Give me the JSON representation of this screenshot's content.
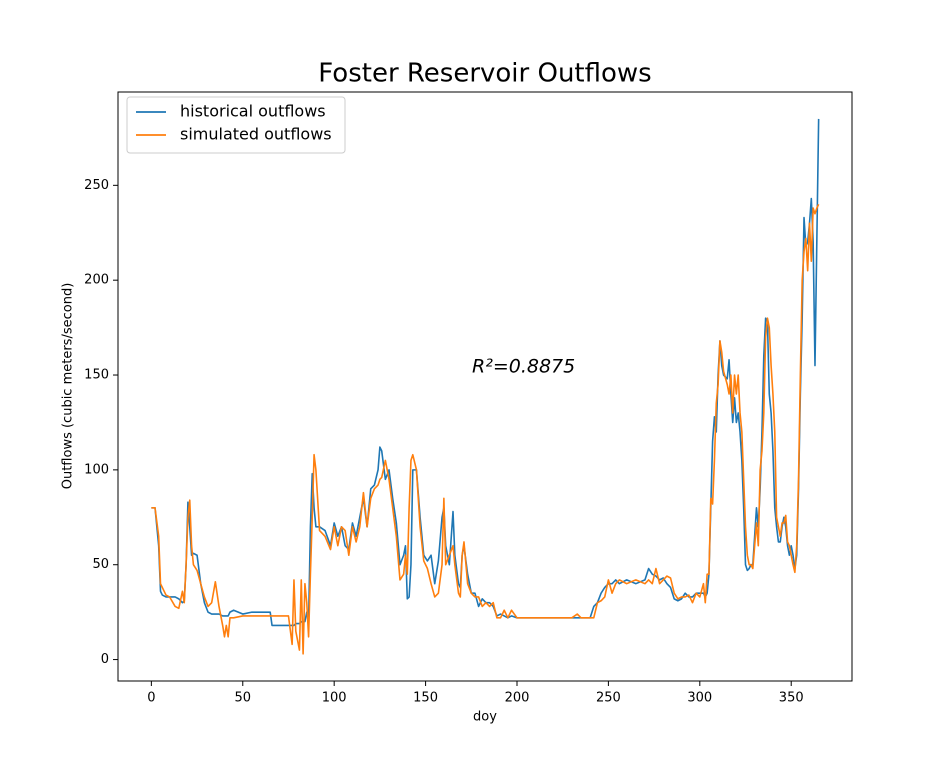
{
  "chart_data": {
    "type": "line",
    "title": "Foster Reservoir Outflows",
    "x_label": "doy",
    "y_label": "Outflows (cubic meters/second)",
    "annotation": "R²=0.8875",
    "legend": "upper left",
    "grid": false,
    "xlim": [
      -18.25,
      383.25
    ],
    "ylim": [
      -11.3,
      299.2
    ],
    "xticks": [
      0,
      50,
      100,
      150,
      200,
      250,
      300,
      350
    ],
    "yticks": [
      0,
      50,
      100,
      150,
      200,
      250
    ],
    "x": [
      0,
      2,
      4,
      5,
      6,
      8,
      10,
      13,
      15,
      17,
      18,
      19,
      20,
      21,
      22,
      23,
      25,
      27,
      29,
      31,
      33,
      35,
      37,
      39,
      40,
      41,
      42,
      43,
      45,
      50,
      55,
      60,
      65,
      66,
      75,
      77,
      78,
      79,
      81,
      82,
      83,
      84,
      85,
      86,
      87,
      88,
      89,
      90,
      92,
      95,
      98,
      100,
      102,
      104,
      106,
      108,
      110,
      112,
      114,
      116,
      118,
      120,
      122,
      124,
      125,
      126,
      128,
      130,
      132,
      134,
      136,
      138,
      139,
      140,
      141,
      142,
      143,
      145,
      147,
      149,
      151,
      153,
      155,
      157,
      159,
      160,
      161,
      163,
      165,
      166,
      168,
      169,
      170,
      171,
      173,
      175,
      177,
      179,
      181,
      183,
      185,
      187,
      189,
      191,
      193,
      195,
      197,
      200,
      210,
      220,
      230,
      233,
      235,
      240,
      242,
      244,
      246,
      248,
      250,
      252,
      254,
      256,
      260,
      265,
      270,
      272,
      274,
      276,
      278,
      280,
      282,
      284,
      286,
      288,
      290,
      292,
      294,
      296,
      298,
      300,
      302,
      303,
      304,
      305,
      306,
      307,
      308,
      309,
      310,
      311,
      312,
      313,
      315,
      316,
      317,
      318,
      319,
      320,
      321,
      322,
      323,
      324,
      325,
      326,
      327,
      328,
      329,
      330,
      331,
      332,
      333,
      334,
      335,
      336,
      337,
      338,
      339,
      340,
      341,
      342,
      343,
      344,
      345,
      346,
      347,
      348,
      349,
      350,
      351,
      352,
      353,
      354,
      355,
      356,
      357,
      358,
      359,
      360,
      361,
      362,
      363,
      364,
      365
    ],
    "series": [
      {
        "name": "historical outflows",
        "color": "#1f77b4",
        "values": [
          80,
          80,
          60,
          36,
          34,
          33,
          33,
          33,
          32,
          30,
          31,
          50,
          83,
          70,
          55,
          56,
          55,
          40,
          30,
          25,
          24,
          24,
          24,
          23,
          23,
          23,
          23,
          25,
          26,
          24,
          25,
          25,
          25,
          18,
          18,
          18,
          18,
          19,
          19,
          20,
          20,
          20,
          25,
          20,
          70,
          98,
          80,
          70,
          70,
          68,
          60,
          72,
          65,
          70,
          60,
          58,
          72,
          65,
          75,
          85,
          70,
          90,
          92,
          100,
          112,
          110,
          95,
          100,
          85,
          72,
          50,
          55,
          60,
          32,
          33,
          50,
          100,
          100,
          75,
          55,
          52,
          55,
          40,
          52,
          75,
          80,
          60,
          50,
          78,
          55,
          40,
          38,
          55,
          60,
          45,
          35,
          35,
          28,
          32,
          30,
          30,
          28,
          23,
          24,
          23,
          22,
          23,
          22,
          22,
          22,
          22,
          22,
          22,
          22,
          28,
          30,
          35,
          38,
          40,
          40,
          42,
          40,
          42,
          40,
          42,
          48,
          45,
          44,
          42,
          43,
          40,
          38,
          32,
          31,
          32,
          35,
          33,
          33,
          35,
          35,
          35,
          33,
          35,
          45,
          80,
          115,
          128,
          120,
          150,
          168,
          155,
          150,
          148,
          158,
          140,
          125,
          138,
          125,
          130,
          120,
          105,
          80,
          50,
          47,
          48,
          50,
          50,
          65,
          80,
          70,
          90,
          120,
          160,
          180,
          178,
          140,
          130,
          110,
          80,
          70,
          62,
          62,
          70,
          75,
          70,
          60,
          55,
          60,
          55,
          48,
          55,
          90,
          140,
          180,
          233,
          218,
          220,
          230,
          243,
          220,
          155,
          220,
          285
        ]
      },
      {
        "name": "simulated outflows",
        "color": "#ff7f0e",
        "values": [
          80,
          80,
          65,
          40,
          38,
          34,
          33,
          28,
          27,
          36,
          30,
          50,
          75,
          84,
          60,
          50,
          47,
          40,
          33,
          28,
          30,
          41,
          28,
          18,
          12,
          18,
          12,
          22,
          22,
          23,
          23,
          23,
          23,
          23,
          23,
          8,
          42,
          15,
          5,
          42,
          3,
          40,
          30,
          12,
          45,
          75,
          108,
          100,
          68,
          65,
          58,
          70,
          60,
          70,
          68,
          55,
          70,
          62,
          70,
          88,
          70,
          85,
          90,
          92,
          95,
          96,
          105,
          95,
          80,
          65,
          42,
          45,
          55,
          45,
          80,
          105,
          108,
          100,
          70,
          52,
          48,
          40,
          33,
          35,
          50,
          85,
          50,
          55,
          60,
          50,
          35,
          33,
          55,
          62,
          40,
          35,
          33,
          33,
          28,
          30,
          28,
          30,
          22,
          22,
          26,
          22,
          26,
          22,
          22,
          22,
          22,
          24,
          22,
          22,
          22,
          30,
          31,
          33,
          42,
          35,
          40,
          42,
          40,
          42,
          40,
          42,
          40,
          48,
          40,
          42,
          44,
          43,
          35,
          32,
          33,
          33,
          34,
          30,
          35,
          33,
          40,
          30,
          45,
          45,
          85,
          82,
          105,
          135,
          145,
          168,
          162,
          152,
          145,
          140,
          150,
          130,
          150,
          140,
          150,
          130,
          120,
          95,
          70,
          55,
          50,
          50,
          48,
          60,
          72,
          60,
          100,
          110,
          130,
          170,
          180,
          175,
          155,
          140,
          120,
          75,
          70,
          65,
          72,
          72,
          76,
          62,
          60,
          55,
          50,
          46,
          60,
          95,
          150,
          200,
          215,
          222,
          205,
          230,
          210,
          238,
          235,
          238,
          240
        ]
      }
    ]
  }
}
